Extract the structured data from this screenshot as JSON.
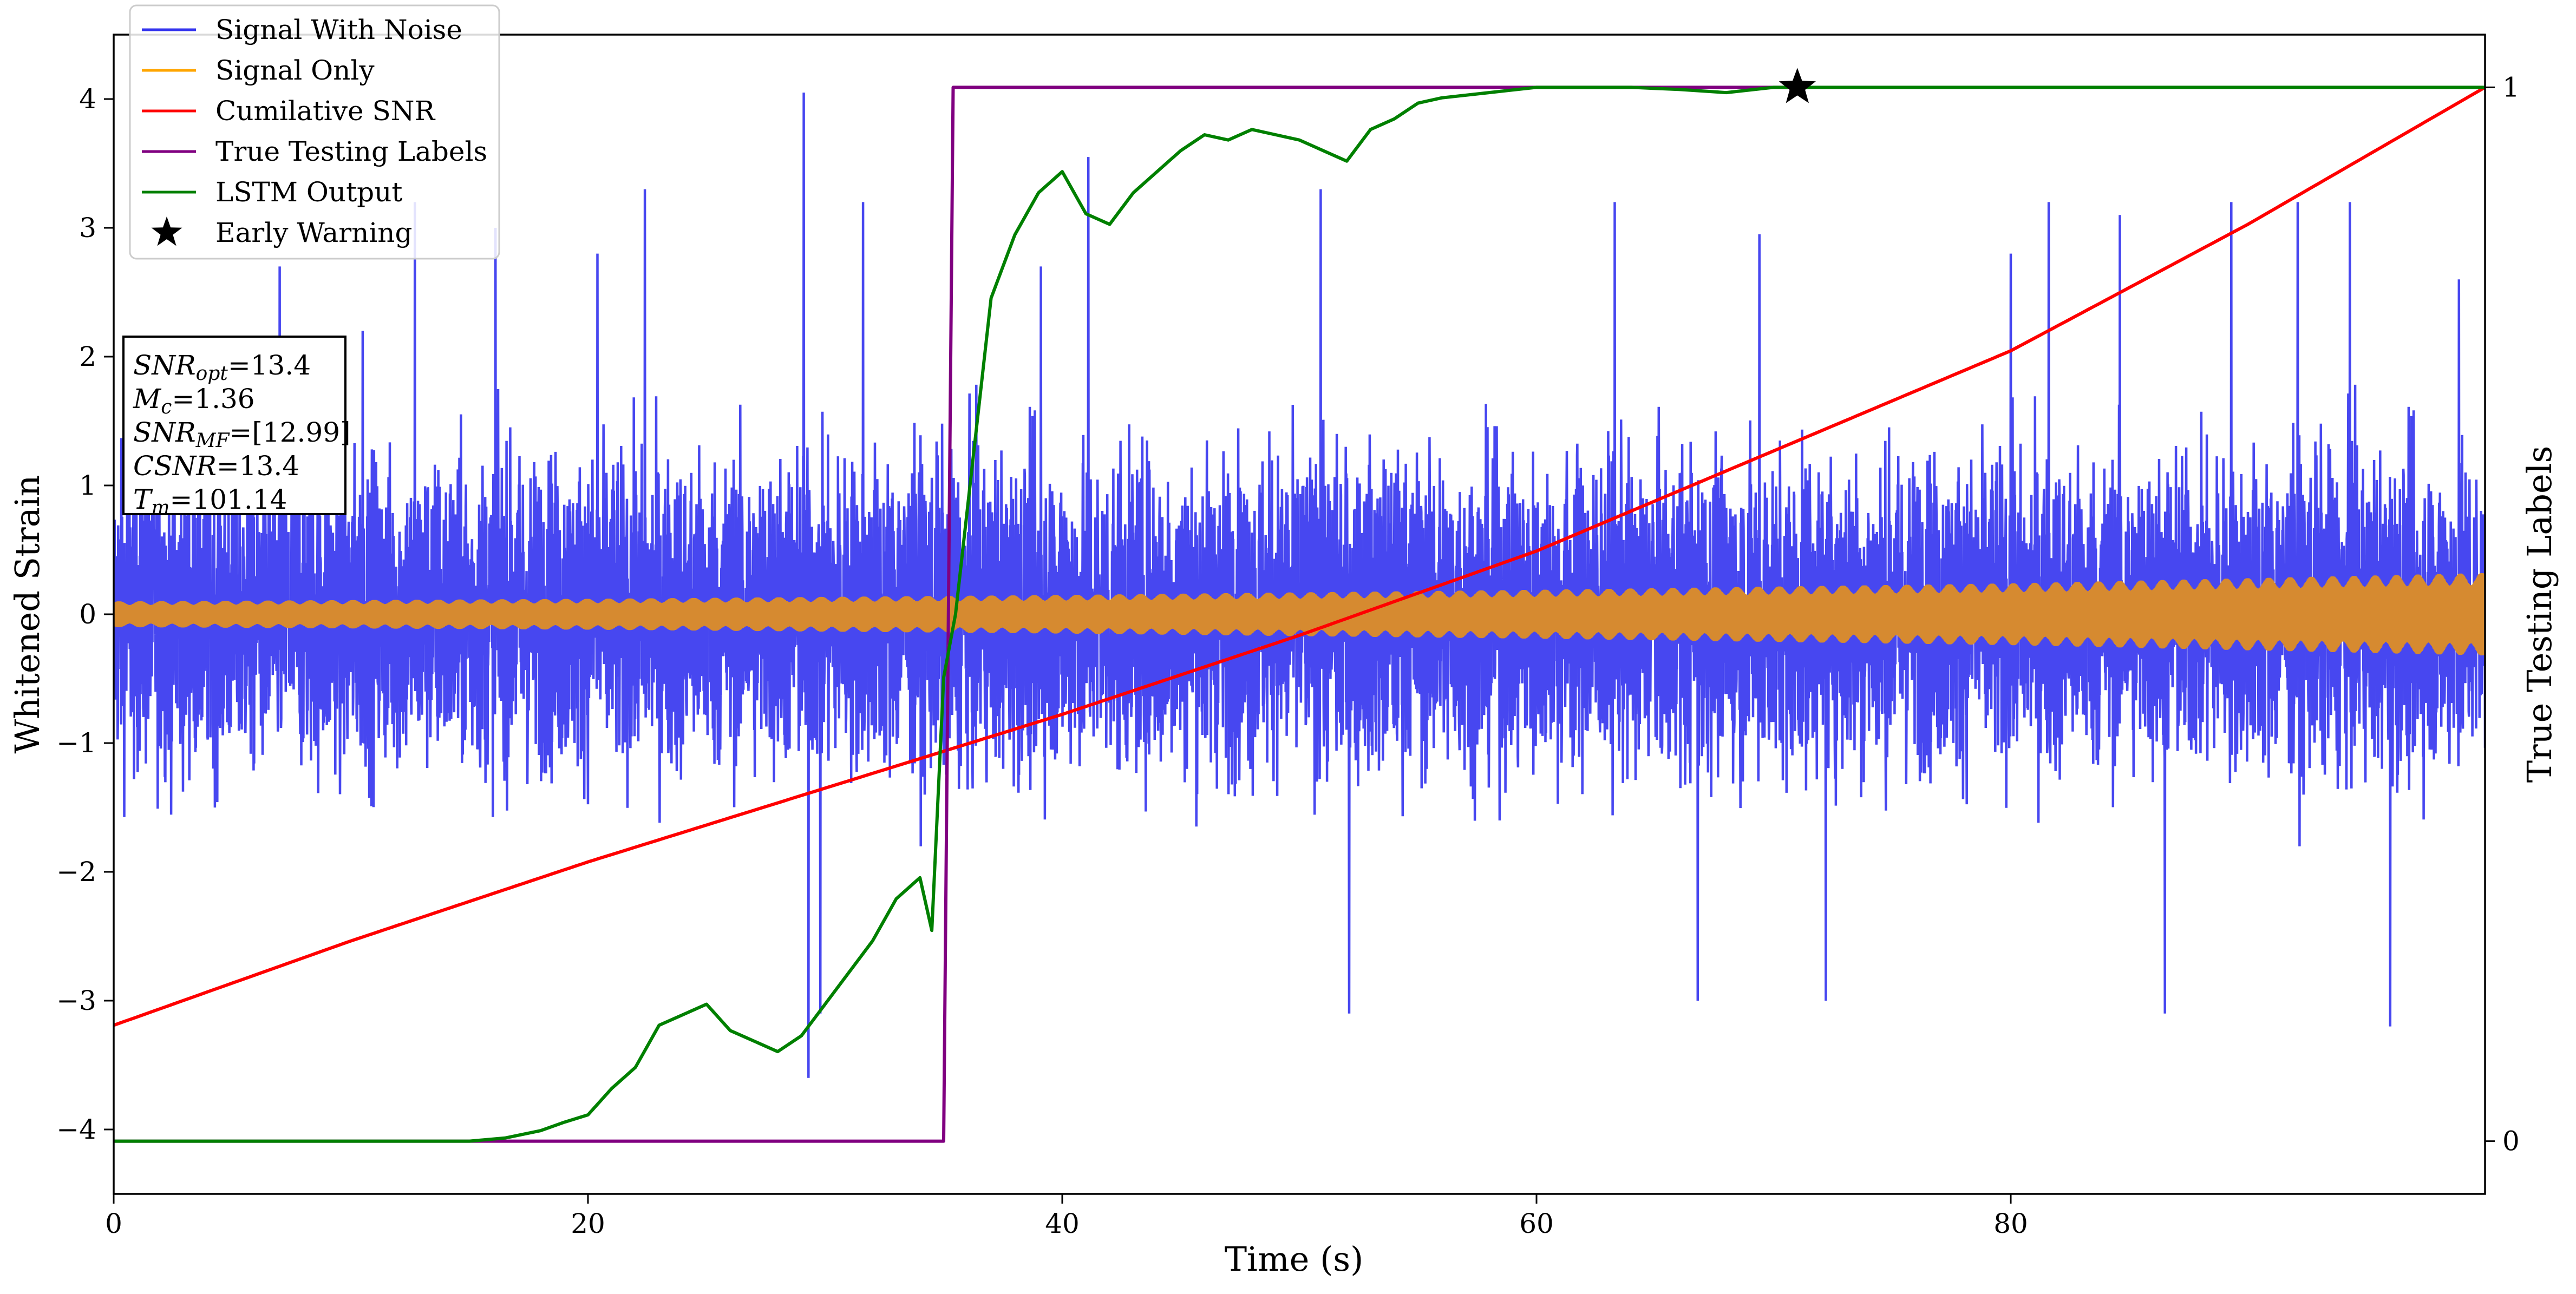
{
  "chart_data": {
    "type": "line",
    "xlabel": "Time (s)",
    "ylabel": "Whitened Strain",
    "y2label": "True Testing Labels",
    "xlim": [
      0,
      100
    ],
    "ylim": [
      -4.5,
      4.5
    ],
    "y2lim": [
      -0.05,
      1.05
    ],
    "xticks": [
      0,
      20,
      40,
      60,
      80
    ],
    "yticks": [
      -4,
      -3,
      -2,
      -1,
      0,
      1,
      2,
      3,
      4
    ],
    "y2ticks": [
      0,
      1
    ],
    "xtick_labels": [
      "0",
      "20",
      "40",
      "60",
      "80"
    ],
    "ytick_labels": [
      "−4",
      "−3",
      "−2",
      "−1",
      "0",
      "1",
      "2",
      "3",
      "4"
    ],
    "y2tick_labels": [
      "0",
      "1"
    ],
    "grid": false,
    "legend_position": "top-left",
    "annotation": {
      "lines": [
        {
          "main": "SNR",
          "sub": "opt",
          "value": "=13.4"
        },
        {
          "main": "M",
          "sub": "c",
          "value": "=1.36"
        },
        {
          "main": "SNR",
          "sub": "MF",
          "value": "=[12.99]"
        },
        {
          "main": "CSNR",
          "sub": "",
          "value": "=13.4"
        },
        {
          "main": "T",
          "sub": "m",
          "value": "=101.14"
        }
      ]
    },
    "series": [
      {
        "name": "Signal With Noise",
        "color": "#3333ee",
        "axis": "left",
        "kind": "noise",
        "x_range": [
          0,
          100
        ],
        "typical_amplitude": 1.1,
        "peaks": [
          {
            "x": 7.0,
            "y": 2.7
          },
          {
            "x": 10.5,
            "y": 2.2
          },
          {
            "x": 12.7,
            "y": 3.2
          },
          {
            "x": 16.1,
            "y": 3.0
          },
          {
            "x": 20.4,
            "y": 2.8
          },
          {
            "x": 22.4,
            "y": 3.3
          },
          {
            "x": 29.1,
            "y": 4.05
          },
          {
            "x": 29.3,
            "y": -3.6
          },
          {
            "x": 29.8,
            "y": -3.1
          },
          {
            "x": 31.6,
            "y": 3.2
          },
          {
            "x": 39.1,
            "y": 2.7
          },
          {
            "x": 41.1,
            "y": 3.55
          },
          {
            "x": 50.9,
            "y": 3.3
          },
          {
            "x": 52.1,
            "y": -3.1
          },
          {
            "x": 63.3,
            "y": 3.2
          },
          {
            "x": 66.8,
            "y": -3.0
          },
          {
            "x": 69.4,
            "y": 2.95
          },
          {
            "x": 72.2,
            "y": -3.0
          },
          {
            "x": 80.0,
            "y": 2.8
          },
          {
            "x": 81.6,
            "y": 3.2
          },
          {
            "x": 84.6,
            "y": 3.1
          },
          {
            "x": 86.5,
            "y": -3.1
          },
          {
            "x": 89.3,
            "y": 3.2
          },
          {
            "x": 92.1,
            "y": 3.2
          },
          {
            "x": 94.3,
            "y": 3.2
          },
          {
            "x": 96.0,
            "y": -3.2
          },
          {
            "x": 98.9,
            "y": 2.6
          }
        ]
      },
      {
        "name": "Signal Only",
        "color": "#ffa500",
        "axis": "left",
        "kind": "envelope",
        "x": [
          0,
          20,
          40,
          60,
          80,
          100
        ],
        "amplitude": [
          0.1,
          0.12,
          0.15,
          0.19,
          0.24,
          0.32
        ]
      },
      {
        "name": "Cumilative SNR",
        "color": "#ff0000",
        "axis": "right",
        "x": [
          0,
          10,
          20,
          30,
          35,
          40,
          50,
          60,
          70,
          80,
          90,
          100
        ],
        "values": [
          0.11,
          0.19,
          0.265,
          0.335,
          0.37,
          0.405,
          0.48,
          0.56,
          0.655,
          0.75,
          0.87,
          1.0
        ]
      },
      {
        "name": "True Testing Labels",
        "color": "#800080",
        "axis": "right",
        "x": [
          0,
          35.0,
          35.4,
          71.0
        ],
        "values": [
          0,
          0,
          1,
          1
        ]
      },
      {
        "name": "LSTM Output",
        "color": "#008000",
        "axis": "right",
        "x": [
          0,
          15,
          16.5,
          18,
          19,
          20,
          21,
          22,
          23,
          24,
          25,
          26,
          27,
          28,
          29,
          30,
          31,
          32,
          33,
          34,
          34.5,
          35,
          35.5,
          36,
          36.5,
          37,
          38,
          39,
          40,
          41,
          42,
          43,
          44,
          45,
          46,
          47,
          48,
          49,
          50,
          51,
          52,
          53,
          54,
          55,
          56,
          58,
          60,
          62,
          64,
          66,
          68,
          70,
          72,
          80,
          90,
          100
        ],
        "values": [
          0,
          0.0,
          0.003,
          0.01,
          0.018,
          0.025,
          0.05,
          0.07,
          0.11,
          0.12,
          0.13,
          0.105,
          0.095,
          0.085,
          0.1,
          0.13,
          0.16,
          0.19,
          0.23,
          0.25,
          0.2,
          0.44,
          0.5,
          0.6,
          0.7,
          0.8,
          0.86,
          0.9,
          0.92,
          0.88,
          0.87,
          0.9,
          0.92,
          0.94,
          0.955,
          0.95,
          0.96,
          0.955,
          0.95,
          0.94,
          0.93,
          0.96,
          0.97,
          0.985,
          0.99,
          0.995,
          1.0,
          1.0,
          1.0,
          0.998,
          0.995,
          1.0,
          1.0,
          1.0,
          1.0,
          1.0
        ]
      },
      {
        "name": "Early Warning",
        "color": "#000000",
        "axis": "right",
        "kind": "marker",
        "x": [
          71.0
        ],
        "values": [
          1.0
        ]
      }
    ]
  }
}
